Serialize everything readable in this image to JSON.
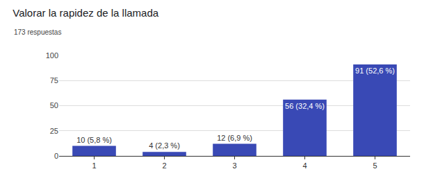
{
  "chart_data": {
    "type": "bar",
    "title": "Valorar la rapidez de la llamada",
    "subtitle": "173 respuestas",
    "categories": [
      "1",
      "2",
      "3",
      "4",
      "5"
    ],
    "values": [
      10,
      4,
      12,
      56,
      91
    ],
    "value_labels": [
      "10 (5,8 %)",
      "4 (2,3 %)",
      "12 (6,9 %)",
      "56 (32,4 %)",
      "91 (52,6 %)"
    ],
    "color": "#3949b5",
    "ylim": [
      0,
      100
    ],
    "yticks": [
      0,
      25,
      50,
      75,
      100
    ],
    "grid": true,
    "data_labels": true
  }
}
